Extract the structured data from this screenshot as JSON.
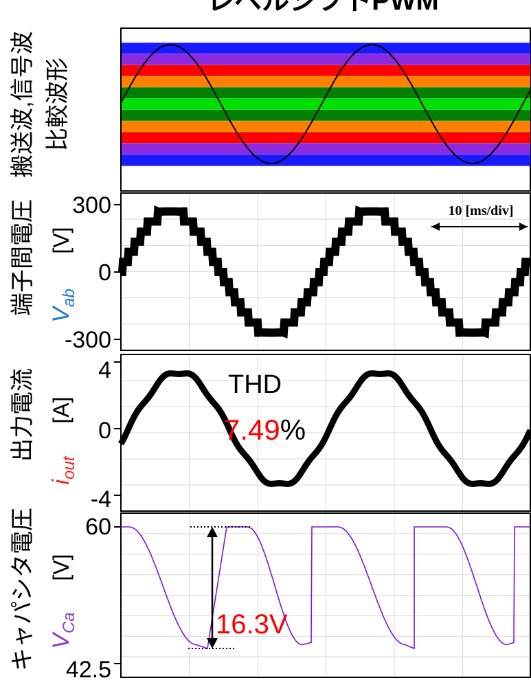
{
  "figure": {
    "title": "レベルシフトPWM",
    "note_time": "10 [ms/div]"
  },
  "colors": {
    "waveform": "#000000",
    "signal": "#000000",
    "capacitor": "#7a16e0",
    "thd_value": "#ff0000",
    "delta": "#ff0000",
    "symbol_vab": "#1f78c8",
    "symbol_iout": "#ff2020",
    "symbol_vca": "#8a3cc8",
    "grid": "#d8d8d8",
    "carrier_bands": [
      "#1a1aff",
      "#8a2be2",
      "#ff0000",
      "#ff7f00",
      "#008000",
      "#00e000",
      "#008000",
      "#ff7f00",
      "#ff0000",
      "#8a2be2",
      "#1a1aff"
    ]
  },
  "panels": {
    "p1": {
      "label_line1": "搬送波,信号波",
      "label_line2": "比較波形"
    },
    "p2": {
      "label_name": "端子間電圧",
      "label_unit": "[V]",
      "symbol_main": "V",
      "symbol_sub": "ab",
      "ticks": [
        "300",
        "0",
        "-300"
      ]
    },
    "p3": {
      "label_name": "出力電流",
      "label_unit": "[A]",
      "symbol_main": "i",
      "symbol_sub": "out",
      "ticks": [
        "4",
        "0",
        "-4"
      ],
      "thd_label": "THD",
      "thd_value": "7.49",
      "thd_unit": "%"
    },
    "p4": {
      "label_name": "キャパシタ電圧",
      "label_unit": "[V]",
      "symbol_main": "V",
      "symbol_sub": "Ca",
      "ticks": [
        "60",
        "42.5"
      ],
      "delta_label": "16.3V"
    }
  },
  "chart_data": [
    {
      "type": "line",
      "title": "搬送波,信号波 比較波形",
      "series": [
        {
          "values": [
            0,
            0.5,
            0.87,
            1,
            0.87,
            0.5,
            0,
            -0.5,
            -0.87,
            -1,
            -0.87,
            -0.5,
            0
          ]
        }
      ],
      "carrier_levels": 10,
      "cycles_shown": 2
    },
    {
      "type": "line",
      "ylabel": "端子間電圧 Vab [V]",
      "yticks": [
        300,
        0,
        -300
      ],
      "ylim": [
        -330,
        330
      ],
      "levels_V": [
        0,
        48,
        96,
        144,
        192,
        240,
        288
      ],
      "peak_V": 270,
      "cycles_shown": 2
    },
    {
      "type": "line",
      "ylabel": "出力電流 iout [A]",
      "yticks": [
        4,
        0,
        -4
      ],
      "ylim": [
        -4.4,
        4.4
      ],
      "amplitude_A": 3.4,
      "annotations": [
        "THD",
        "7.49%"
      ],
      "cycles_shown": 2
    },
    {
      "type": "line",
      "ylabel": "キャパシタ電圧 VCa [V]",
      "yticks": [
        60,
        42.5
      ],
      "ylim": [
        41.5,
        61.5
      ],
      "max_V": 60,
      "min_V": 43.7,
      "annotations": [
        "16.3V"
      ],
      "cycles_shown": 2
    }
  ]
}
